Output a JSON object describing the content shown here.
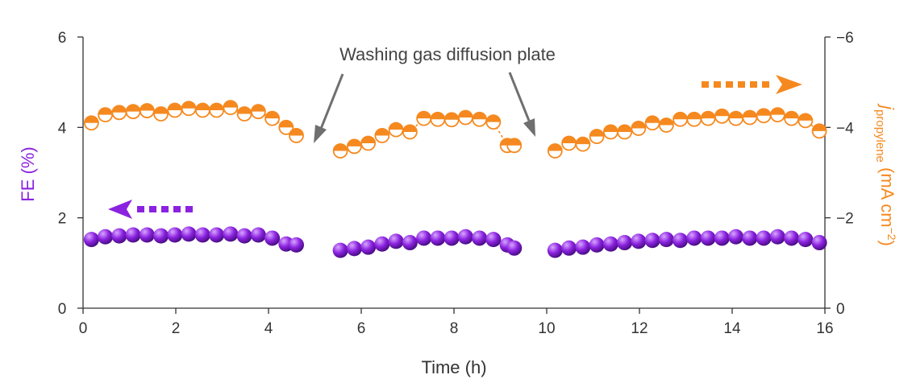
{
  "chart_data": {
    "type": "scatter",
    "xlabel": "Time (h)",
    "xlim": [
      0,
      16
    ],
    "x_ticks": [
      0,
      2,
      4,
      6,
      8,
      10,
      12,
      14,
      16
    ],
    "x_tick_labels": [
      "0",
      "2",
      "4",
      "6",
      "8",
      "10",
      "12",
      "14",
      "16"
    ],
    "ylabel_left": "FE (%)",
    "ylim_left": [
      0,
      6
    ],
    "y_left_ticks": [
      0,
      2,
      4,
      6
    ],
    "y_left_tick_labels": [
      "0",
      "2",
      "4",
      "6"
    ],
    "ylabel_right": {
      "italic": "j",
      "subscript": "propylene",
      "main": " (mA cm",
      "superscript": "−2",
      "close": ")"
    },
    "ylim_right": [
      0,
      -6
    ],
    "y_right_ticks": [
      0,
      -2,
      -4,
      -6
    ],
    "y_right_tick_labels": [
      "0",
      "−2",
      "−4",
      "−6"
    ],
    "annotation": "Washing gas diffusion plate",
    "colors": {
      "fe": "#8b22e0",
      "fe_light": "#d9a6ff",
      "fe_dark": "#4b0e86",
      "current": "#f5891f",
      "axis": "#333333",
      "annotation_arrow": "#6f6f6f"
    },
    "series": [
      {
        "axis": "left",
        "marker": "sphere",
        "x": [
          0.18,
          0.48,
          0.78,
          1.08,
          1.38,
          1.68,
          1.98,
          2.28,
          2.58,
          2.88,
          3.18,
          3.48,
          3.78,
          4.08,
          4.38,
          4.6,
          5.55,
          5.85,
          6.15,
          6.45,
          6.75,
          7.05,
          7.35,
          7.65,
          7.95,
          8.25,
          8.55,
          8.85,
          9.15,
          9.3,
          10.18,
          10.48,
          10.78,
          11.08,
          11.38,
          11.68,
          11.98,
          12.28,
          12.58,
          12.88,
          13.18,
          13.48,
          13.78,
          14.08,
          14.38,
          14.68,
          14.98,
          15.28,
          15.58,
          15.88
        ],
        "y": [
          1.52,
          1.58,
          1.6,
          1.62,
          1.62,
          1.6,
          1.62,
          1.64,
          1.62,
          1.62,
          1.64,
          1.6,
          1.62,
          1.55,
          1.42,
          1.4,
          1.28,
          1.32,
          1.35,
          1.42,
          1.48,
          1.45,
          1.55,
          1.55,
          1.55,
          1.58,
          1.55,
          1.52,
          1.4,
          1.33,
          1.28,
          1.33,
          1.35,
          1.4,
          1.42,
          1.45,
          1.48,
          1.5,
          1.52,
          1.5,
          1.55,
          1.55,
          1.55,
          1.58,
          1.55,
          1.55,
          1.58,
          1.55,
          1.52,
          1.45
        ]
      },
      {
        "axis": "right",
        "marker": "half-filled-circle",
        "x": [
          0.18,
          0.48,
          0.78,
          1.08,
          1.38,
          1.68,
          1.98,
          2.28,
          2.58,
          2.88,
          3.18,
          3.48,
          3.78,
          4.08,
          4.38,
          4.6,
          5.55,
          5.85,
          6.15,
          6.45,
          6.75,
          7.05,
          7.35,
          7.65,
          7.95,
          8.25,
          8.55,
          8.85,
          9.15,
          9.3,
          10.18,
          10.48,
          10.78,
          11.08,
          11.38,
          11.68,
          11.98,
          12.28,
          12.58,
          12.88,
          13.18,
          13.48,
          13.78,
          14.08,
          14.38,
          14.68,
          14.98,
          15.28,
          15.58,
          15.88
        ],
        "y": [
          -4.1,
          -4.28,
          -4.33,
          -4.35,
          -4.37,
          -4.3,
          -4.38,
          -4.42,
          -4.38,
          -4.38,
          -4.44,
          -4.3,
          -4.35,
          -4.2,
          -4.0,
          -3.82,
          -3.48,
          -3.58,
          -3.65,
          -3.82,
          -3.95,
          -3.9,
          -4.2,
          -4.18,
          -4.17,
          -4.22,
          -4.18,
          -4.12,
          -3.6,
          -3.6,
          -3.48,
          -3.65,
          -3.63,
          -3.8,
          -3.9,
          -3.9,
          -3.98,
          -4.1,
          -4.05,
          -4.18,
          -4.18,
          -4.2,
          -4.25,
          -4.2,
          -4.22,
          -4.26,
          -4.28,
          -4.2,
          -4.15,
          -3.92
        ]
      }
    ]
  }
}
